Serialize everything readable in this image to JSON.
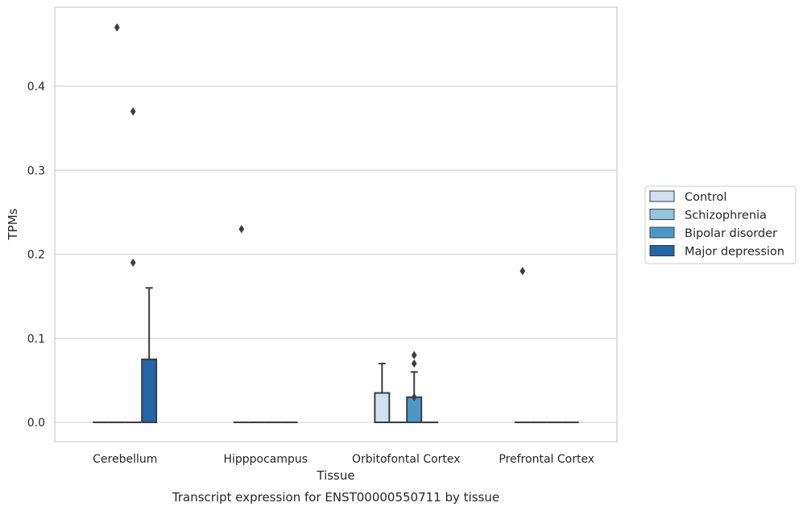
{
  "chart_data": {
    "type": "box",
    "title": "Transcript expression for ENST00000550711 by tissue",
    "xlabel": "Tissue",
    "ylabel": "TPMs",
    "ylim": [
      -0.023,
      0.494
    ],
    "yticks": [
      0.0,
      0.1,
      0.2,
      0.3,
      0.4
    ],
    "ytick_labels": [
      "0.0",
      "0.1",
      "0.2",
      "0.3",
      "0.4"
    ],
    "grid": "horizontal",
    "legend_position": "right",
    "categories": [
      "Cerebellum",
      "Hipppocampus",
      "Orbitofontal Cortex",
      "Prefrontal Cortex"
    ],
    "series": [
      {
        "name": "Control",
        "color": "#d0e1f2",
        "boxes": [
          {
            "q1": 0,
            "median": 0,
            "q3": 0,
            "whislo": 0,
            "whishi": 0,
            "fliers": []
          },
          {
            "q1": 0,
            "median": 0,
            "q3": 0,
            "whislo": 0,
            "whishi": 0,
            "fliers": [
              0.23
            ]
          },
          {
            "q1": 0,
            "median": 0,
            "q3": 0.035,
            "whislo": 0,
            "whishi": 0.07,
            "fliers": []
          },
          {
            "q1": 0,
            "median": 0,
            "q3": 0,
            "whislo": 0,
            "whishi": 0,
            "fliers": [
              0.18
            ]
          }
        ]
      },
      {
        "name": "Schizophrenia",
        "color": "#94c4df",
        "boxes": [
          {
            "q1": 0,
            "median": 0,
            "q3": 0,
            "whislo": 0,
            "whishi": 0,
            "fliers": [
              0.47
            ]
          },
          {
            "q1": 0,
            "median": 0,
            "q3": 0,
            "whislo": 0,
            "whishi": 0,
            "fliers": []
          },
          {
            "q1": 0,
            "median": 0,
            "q3": 0,
            "whislo": 0,
            "whishi": 0,
            "fliers": []
          },
          {
            "q1": 0,
            "median": 0,
            "q3": 0,
            "whislo": 0,
            "whishi": 0,
            "fliers": []
          }
        ]
      },
      {
        "name": "Bipolar disorder",
        "color": "#4a98c9",
        "boxes": [
          {
            "q1": 0,
            "median": 0,
            "q3": 0,
            "whislo": 0,
            "whishi": 0,
            "fliers": [
              0.37,
              0.19
            ]
          },
          {
            "q1": 0,
            "median": 0,
            "q3": 0,
            "whislo": 0,
            "whishi": 0,
            "fliers": []
          },
          {
            "q1": 0,
            "median": 0,
            "q3": 0.03,
            "whislo": 0,
            "whishi": 0.06,
            "fliers": [
              0.08,
              0.07,
              0.03
            ]
          },
          {
            "q1": 0,
            "median": 0,
            "q3": 0,
            "whislo": 0,
            "whishi": 0,
            "fliers": []
          }
        ]
      },
      {
        "name": "Major depression",
        "color": "#2464a8",
        "boxes": [
          {
            "q1": 0,
            "median": 0,
            "q3": 0.075,
            "whislo": 0,
            "whishi": 0.16,
            "fliers": []
          },
          {
            "q1": 0,
            "median": 0,
            "q3": 0,
            "whislo": 0,
            "whishi": 0,
            "fliers": []
          },
          {
            "q1": 0,
            "median": 0,
            "q3": 0,
            "whislo": 0,
            "whishi": 0,
            "fliers": []
          },
          {
            "q1": 0,
            "median": 0,
            "q3": 0,
            "whislo": 0,
            "whishi": 0,
            "fliers": []
          }
        ]
      }
    ]
  }
}
